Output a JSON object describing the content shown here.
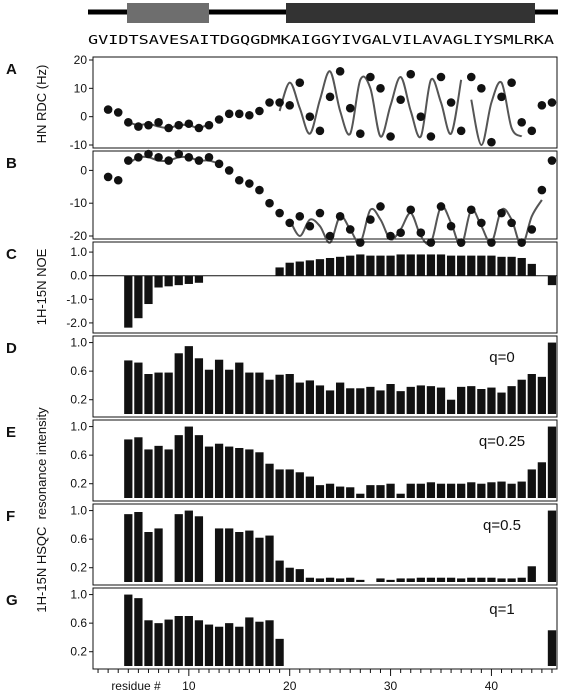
{
  "sequence": "GVIDTSAVESAITDGQGDMKAIGGYIVGALVILAVAGLIYSMLRKA",
  "x_axis": {
    "label": "residue #",
    "ticks": [
      10,
      20,
      30,
      40
    ],
    "xlim": [
      1,
      46
    ]
  },
  "ylabels": {
    "rdc": "HN RDC (Hz)",
    "noe": "1H-15N NOE",
    "intensity": "1H-15N HSQC  resonance intensity"
  },
  "colors": {
    "bar": "#111111",
    "fit": "#555555",
    "helix_light": "#6e6e6e",
    "helix_dark": "#333333"
  },
  "chart_data": [
    {
      "panel": "A",
      "type": "scatter",
      "ylabel": "HN RDC (Hz)",
      "ylim": [
        -10,
        20
      ],
      "yticks": [
        -10,
        0,
        10,
        20
      ],
      "x": [
        2,
        3,
        4,
        5,
        6,
        7,
        8,
        9,
        10,
        11,
        12,
        13,
        14,
        15,
        16,
        17,
        18,
        19,
        20,
        21,
        22,
        23,
        24,
        25,
        26,
        27,
        28,
        29,
        30,
        31,
        32,
        33,
        34,
        35,
        36,
        37,
        38,
        39,
        40,
        41,
        42,
        43,
        44,
        45,
        46
      ],
      "values": [
        2.5,
        1.5,
        -2,
        -3.5,
        -3,
        -2,
        -4,
        -3,
        -2.5,
        -4,
        -3,
        -1,
        1,
        1,
        0.5,
        2,
        5,
        5,
        4,
        12,
        0,
        -5,
        7,
        16,
        3,
        -6,
        14,
        10,
        -7,
        6,
        15,
        0,
        -7,
        14,
        5,
        -5,
        14,
        10,
        -9,
        7,
        12,
        -2,
        -5,
        4,
        5
      ],
      "fits": [
        {
          "x": [
            4,
            5,
            6,
            7,
            8,
            9,
            10,
            11,
            12
          ],
          "values": [
            -2,
            -3,
            -2.5,
            -3.5,
            -4,
            -3,
            -3,
            -4,
            -2.5
          ]
        },
        {
          "x": [
            19,
            20,
            21,
            22,
            23,
            24,
            25,
            26,
            27,
            28,
            29,
            30,
            31,
            32,
            33,
            34,
            35,
            36,
            37
          ],
          "values": [
            2,
            12,
            3,
            -6,
            6,
            16,
            2,
            -6,
            13,
            10,
            -7,
            4,
            14,
            2,
            -7,
            13,
            5,
            -6,
            13
          ]
        },
        {
          "x": [
            38,
            39,
            40,
            41,
            42,
            43
          ],
          "values": [
            6,
            -10,
            5,
            12,
            -4,
            -7
          ]
        }
      ]
    },
    {
      "panel": "B",
      "type": "scatter",
      "ylim": [
        -20,
        5
      ],
      "yticks": [
        -20,
        -10,
        0
      ],
      "x": [
        2,
        3,
        4,
        5,
        6,
        7,
        8,
        9,
        10,
        11,
        12,
        13,
        14,
        15,
        16,
        17,
        18,
        19,
        20,
        21,
        22,
        23,
        24,
        25,
        26,
        27,
        28,
        29,
        30,
        31,
        32,
        33,
        34,
        35,
        36,
        37,
        38,
        39,
        40,
        41,
        42,
        43,
        44,
        45,
        46
      ],
      "values": [
        -2,
        -3,
        3,
        4,
        5,
        4,
        3,
        5,
        4,
        3,
        4,
        2,
        0,
        -3,
        -4,
        -6,
        -10,
        -13,
        -16,
        -14,
        -17,
        -13,
        -20,
        -14,
        -18,
        -22,
        -15,
        -11,
        -20,
        -19,
        -12,
        -19,
        -22,
        -11,
        -17,
        -22,
        -12,
        -16,
        -22,
        -13,
        -16,
        -22,
        -18,
        -6,
        3
      ],
      "fits": [
        {
          "x": [
            4,
            5,
            6,
            7,
            8,
            9,
            10,
            11,
            12,
            13
          ],
          "values": [
            2,
            4,
            4,
            3,
            3,
            4,
            4,
            3,
            3,
            2
          ]
        },
        {
          "x": [
            20,
            21,
            22,
            23,
            24,
            25,
            26,
            27,
            28,
            29,
            30,
            31,
            32,
            33,
            34,
            35,
            36,
            37,
            38,
            39,
            40,
            41,
            42,
            43,
            44,
            45
          ],
          "values": [
            -15,
            -20,
            -15,
            -17,
            -22,
            -14,
            -18,
            -22,
            -12,
            -15,
            -21,
            -18,
            -13,
            -20,
            -22,
            -11,
            -16,
            -23,
            -12,
            -17,
            -22,
            -12,
            -15,
            -23,
            -14,
            -9
          ]
        }
      ]
    },
    {
      "panel": "C",
      "type": "bar",
      "ylabel": "1H-15N NOE",
      "ylim": [
        -2.3,
        1.3
      ],
      "yticks": [
        -2.0,
        -1.0,
        0.0,
        1.0
      ],
      "ytick_labels": [
        "-2.0",
        "-1.0",
        "0.0",
        "1.0"
      ],
      "x": [
        4,
        5,
        6,
        7,
        8,
        9,
        10,
        11,
        19,
        20,
        21,
        22,
        23,
        24,
        25,
        26,
        27,
        28,
        29,
        30,
        31,
        32,
        33,
        34,
        35,
        36,
        37,
        38,
        39,
        40,
        41,
        42,
        43,
        44,
        46
      ],
      "values": [
        -2.2,
        -1.8,
        -1.2,
        -0.5,
        -0.45,
        -0.4,
        -0.35,
        -0.3,
        0.35,
        0.55,
        0.6,
        0.65,
        0.7,
        0.75,
        0.8,
        0.85,
        0.9,
        0.85,
        0.85,
        0.85,
        0.9,
        0.9,
        0.9,
        0.9,
        0.9,
        0.85,
        0.85,
        0.85,
        0.85,
        0.85,
        0.8,
        0.8,
        0.75,
        0.5,
        -0.4
      ]
    },
    {
      "panel": "D",
      "type": "bar",
      "annotation": "q=0",
      "ylim": [
        0,
        1.05
      ],
      "yticks": [
        0.2,
        0.6,
        1.0
      ],
      "ytick_labels": [
        "0.2",
        "0.6",
        "1.0"
      ],
      "x": [
        4,
        5,
        6,
        7,
        8,
        9,
        10,
        11,
        12,
        13,
        14,
        15,
        16,
        17,
        18,
        19,
        20,
        21,
        22,
        23,
        24,
        25,
        26,
        27,
        28,
        29,
        30,
        31,
        32,
        33,
        34,
        35,
        36,
        37,
        38,
        39,
        40,
        41,
        42,
        43,
        44,
        45,
        46
      ],
      "values": [
        0.75,
        0.72,
        0.56,
        0.58,
        0.58,
        0.85,
        0.95,
        0.78,
        0.62,
        0.76,
        0.62,
        0.72,
        0.58,
        0.58,
        0.48,
        0.55,
        0.56,
        0.44,
        0.47,
        0.4,
        0.33,
        0.44,
        0.36,
        0.36,
        0.38,
        0.33,
        0.42,
        0.32,
        0.38,
        0.4,
        0.39,
        0.37,
        0.2,
        0.38,
        0.39,
        0.35,
        0.37,
        0.3,
        0.39,
        0.48,
        0.56,
        0.52,
        1.0
      ]
    },
    {
      "panel": "E",
      "type": "bar",
      "annotation": "q=0.25",
      "ylim": [
        0,
        1.05
      ],
      "yticks": [
        0.2,
        0.6,
        1.0
      ],
      "ytick_labels": [
        "0.2",
        "0.6",
        "1.0"
      ],
      "x": [
        4,
        5,
        6,
        7,
        8,
        9,
        10,
        11,
        12,
        13,
        14,
        15,
        16,
        17,
        18,
        19,
        20,
        21,
        22,
        23,
        24,
        25,
        26,
        27,
        28,
        29,
        30,
        31,
        32,
        33,
        34,
        35,
        36,
        37,
        38,
        39,
        40,
        41,
        42,
        43,
        44,
        45,
        46
      ],
      "values": [
        0.82,
        0.85,
        0.68,
        0.73,
        0.68,
        0.88,
        1.0,
        0.88,
        0.72,
        0.76,
        0.72,
        0.7,
        0.68,
        0.64,
        0.48,
        0.4,
        0.4,
        0.36,
        0.3,
        0.18,
        0.2,
        0.16,
        0.15,
        0.06,
        0.18,
        0.18,
        0.2,
        0.06,
        0.2,
        0.2,
        0.22,
        0.2,
        0.2,
        0.2,
        0.22,
        0.2,
        0.22,
        0.23,
        0.2,
        0.23,
        0.4,
        0.5,
        1.0
      ]
    },
    {
      "panel": "F",
      "type": "bar",
      "annotation": "q=0.5",
      "ylim": [
        0,
        1.05
      ],
      "yticks": [
        0.2,
        0.6,
        1.0
      ],
      "ytick_labels": [
        "0.2",
        "0.6",
        "1.0"
      ],
      "x": [
        4,
        5,
        6,
        7,
        9,
        10,
        11,
        13,
        14,
        15,
        16,
        17,
        18,
        19,
        20,
        21,
        22,
        23,
        24,
        25,
        26,
        27,
        29,
        30,
        31,
        32,
        33,
        34,
        35,
        36,
        37,
        38,
        39,
        40,
        41,
        42,
        43,
        44,
        46
      ],
      "values": [
        0.95,
        0.98,
        0.7,
        0.75,
        0.95,
        1.0,
        0.92,
        0.75,
        0.75,
        0.7,
        0.72,
        0.62,
        0.65,
        0.3,
        0.2,
        0.18,
        0.06,
        0.05,
        0.06,
        0.05,
        0.06,
        0.03,
        0.05,
        0.03,
        0.05,
        0.05,
        0.06,
        0.06,
        0.06,
        0.06,
        0.05,
        0.06,
        0.06,
        0.06,
        0.05,
        0.05,
        0.06,
        0.22,
        1.0
      ]
    },
    {
      "panel": "G",
      "type": "bar",
      "annotation": "q=1",
      "ylim": [
        0,
        1.05
      ],
      "yticks": [
        0.2,
        0.6,
        1.0
      ],
      "ytick_labels": [
        "0.2",
        "0.6",
        "1.0"
      ],
      "x": [
        4,
        5,
        6,
        7,
        8,
        9,
        10,
        11,
        12,
        13,
        14,
        15,
        16,
        17,
        18,
        19,
        46
      ],
      "values": [
        1.0,
        0.95,
        0.64,
        0.6,
        0.65,
        0.7,
        0.7,
        0.64,
        0.58,
        0.55,
        0.6,
        0.55,
        0.68,
        0.62,
        0.64,
        0.38,
        0.5
      ]
    }
  ]
}
